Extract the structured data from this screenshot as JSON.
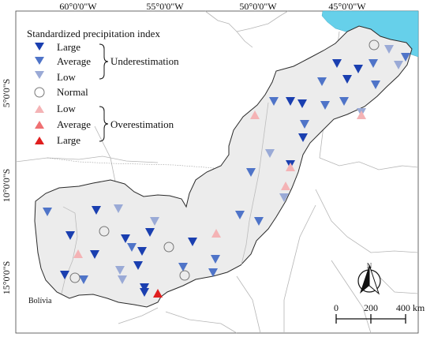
{
  "map": {
    "longitude_labels": [
      "60°0'0\"W",
      "55°0'0\"W",
      "50°0'0\"W",
      "45°0'0\"W"
    ],
    "latitude_labels": [
      "5°0'0\"S",
      "10°0'0\"S",
      "15°0'0\"S"
    ],
    "place_label": "Bolívia",
    "colors": {
      "ocean": "#66d0ea",
      "study_area_fill": "#ececec",
      "under_large": "#1a3fb0",
      "under_average": "#4f74c8",
      "under_low": "#9aaad6",
      "over_low": "#f4b3b5",
      "over_average": "#ef7072",
      "over_large": "#e01e1e"
    }
  },
  "legend": {
    "title": "Standardized precipitation index",
    "under_group_label": "Underestimation",
    "over_group_label": "Overestimation",
    "items": [
      {
        "label": "Large",
        "class": "under_large",
        "shape": "triangle-down"
      },
      {
        "label": "Average",
        "class": "under_average",
        "shape": "triangle-down"
      },
      {
        "label": "Low",
        "class": "under_low",
        "shape": "triangle-down"
      },
      {
        "label": "Normal",
        "class": "normal",
        "shape": "circle"
      },
      {
        "label": "Low",
        "class": "over_low",
        "shape": "triangle-up"
      },
      {
        "label": "Average",
        "class": "over_average",
        "shape": "triangle-up"
      },
      {
        "label": "Large",
        "class": "over_large",
        "shape": "triangle-up"
      }
    ]
  },
  "north_arrow": {
    "label": "N"
  },
  "scale_bar": {
    "ticks": [
      "0",
      "200",
      "400 km"
    ]
  }
}
